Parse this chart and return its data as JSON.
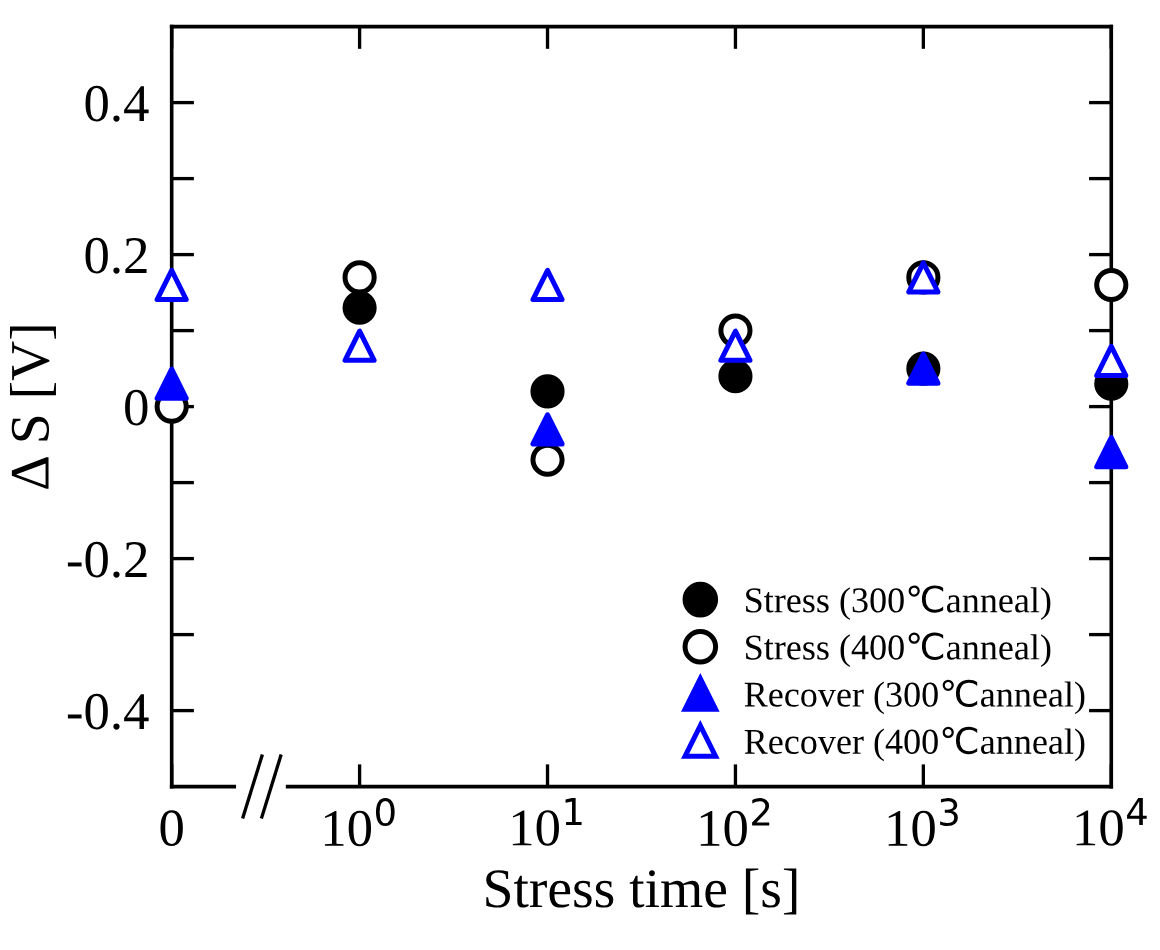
{
  "chart_data": {
    "type": "scatter",
    "xlabel": "Stress time [s]",
    "ylabel": "Δ S [V]",
    "categories": [
      "0",
      "10$^{0}$",
      "10$^{1}$",
      "10$^{2}$",
      "10$^{3}$",
      "10$^{4}$"
    ],
    "series": [
      {
        "name": "Stress (300℃anneal)",
        "color": "#000000",
        "marker": "circle",
        "values": [
          null,
          0.13,
          0.02,
          0.04,
          0.05,
          0.03
        ]
      },
      {
        "name": "Stress (400℃anneal)",
        "color": "#000000",
        "marker": "circle",
        "values": [
          0,
          0.17,
          -0.07,
          0.1,
          0.17,
          0.16
        ]
      },
      {
        "name": "Recover (300℃anneal)",
        "color": "#0000ff",
        "marker": "triangle",
        "values": [
          0.03,
          null,
          -0.03,
          null,
          0.05,
          -0.06
        ]
      },
      {
        "name": "Recover (400℃anneal)",
        "color": "#0000ff",
        "marker": "triangle",
        "values": [
          0.16,
          0.08,
          0.16,
          0.08,
          0.17,
          0.06
        ]
      }
    ],
    "ylim": [
      -0.5,
      0.5
    ],
    "yticks": [
      -0.4,
      {
        "value": -0.3,
        "label": null
      },
      -0.2,
      {
        "value": -0.1,
        "label": null
      },
      0,
      {
        "value": 0.1,
        "label": null
      },
      0.2,
      {
        "value": 0.3,
        "label": null
      },
      0.4
    ],
    "grid": false,
    "legend": "bottom right"
  }
}
